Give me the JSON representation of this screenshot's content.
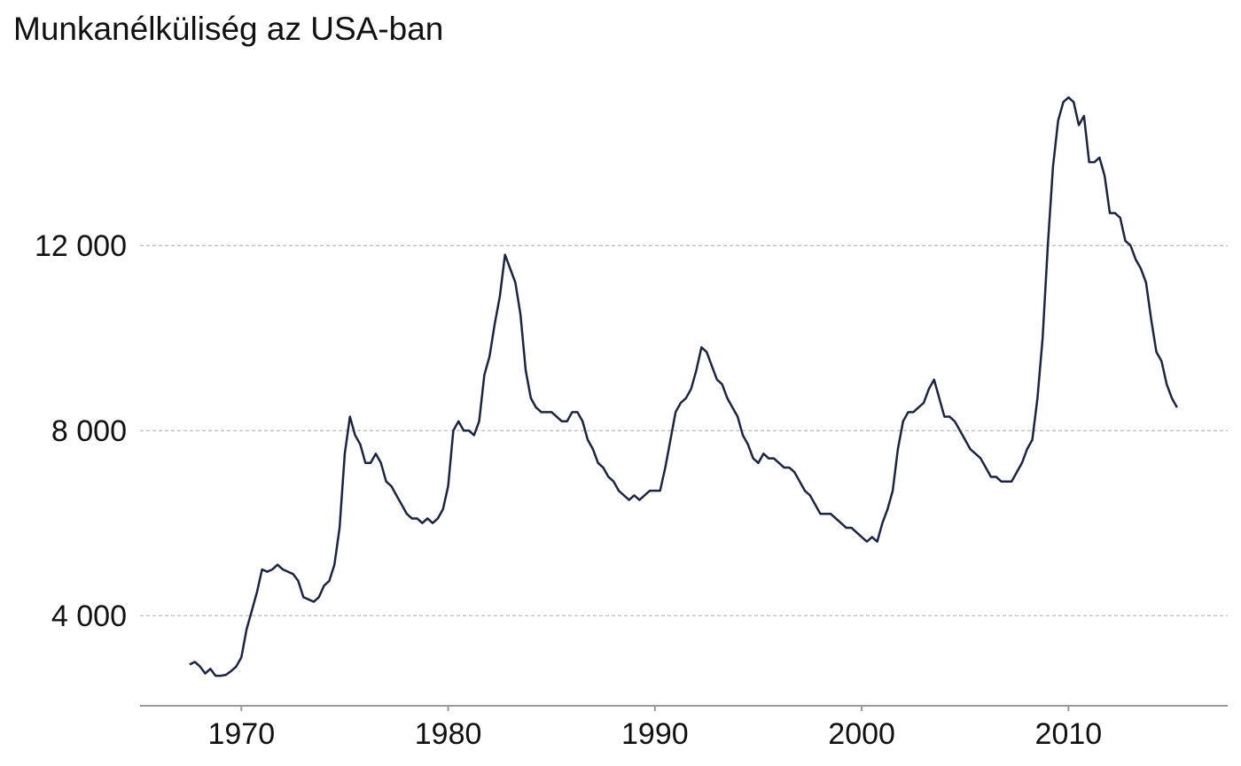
{
  "chart_data": {
    "type": "line",
    "title": "Munkanélküliség az USA-ban",
    "color": "#1b2440",
    "grid": true,
    "xlim": [
      1965.1,
      2017.7
    ],
    "xticks": [
      1970,
      1980,
      1990,
      2000,
      2010
    ],
    "ylim": [
      2052,
      15985
    ],
    "yticks": [
      {
        "value": 4000,
        "label": "4 000"
      },
      {
        "value": 8000,
        "label": "8 000"
      },
      {
        "value": 12000,
        "label": "12 000"
      }
    ],
    "x": [
      1967.5,
      1967.75,
      1968,
      1968.25,
      1968.5,
      1968.75,
      1969,
      1969.25,
      1969.5,
      1969.75,
      1970,
      1970.25,
      1970.5,
      1970.75,
      1971,
      1971.25,
      1971.5,
      1971.75,
      1972,
      1972.25,
      1972.5,
      1972.75,
      1973,
      1973.25,
      1973.5,
      1973.75,
      1974,
      1974.25,
      1974.5,
      1974.75,
      1975,
      1975.25,
      1975.5,
      1975.75,
      1976,
      1976.25,
      1976.5,
      1976.75,
      1977,
      1977.25,
      1977.5,
      1977.75,
      1978,
      1978.25,
      1978.5,
      1978.75,
      1979,
      1979.25,
      1979.5,
      1979.75,
      1980,
      1980.25,
      1980.5,
      1980.75,
      1981,
      1981.25,
      1981.5,
      1981.75,
      1982,
      1982.25,
      1982.5,
      1982.75,
      1983,
      1983.25,
      1983.5,
      1983.75,
      1984,
      1984.25,
      1984.5,
      1984.75,
      1985,
      1985.25,
      1985.5,
      1985.75,
      1986,
      1986.25,
      1986.5,
      1986.75,
      1987,
      1987.25,
      1987.5,
      1987.75,
      1988,
      1988.25,
      1988.5,
      1988.75,
      1989,
      1989.25,
      1989.5,
      1989.75,
      1990,
      1990.25,
      1990.5,
      1990.75,
      1991,
      1991.25,
      1991.5,
      1991.75,
      1992,
      1992.25,
      1992.5,
      1992.75,
      1993,
      1993.25,
      1993.5,
      1993.75,
      1994,
      1994.25,
      1994.5,
      1994.75,
      1995,
      1995.25,
      1995.5,
      1995.75,
      1996,
      1996.25,
      1996.5,
      1996.75,
      1997,
      1997.25,
      1997.5,
      1997.75,
      1998,
      1998.25,
      1998.5,
      1998.75,
      1999,
      1999.25,
      1999.5,
      1999.75,
      2000,
      2000.25,
      2000.5,
      2000.75,
      2001,
      2001.25,
      2001.5,
      2001.75,
      2002,
      2002.25,
      2002.5,
      2002.75,
      2003,
      2003.25,
      2003.5,
      2003.75,
      2004,
      2004.25,
      2004.5,
      2004.75,
      2005,
      2005.25,
      2005.5,
      2005.75,
      2006,
      2006.25,
      2006.5,
      2006.75,
      2007,
      2007.25,
      2007.5,
      2007.75,
      2008,
      2008.25,
      2008.5,
      2008.75,
      2009,
      2009.25,
      2009.5,
      2009.75,
      2010,
      2010.25,
      2010.5,
      2010.75,
      2011,
      2011.25,
      2011.5,
      2011.75,
      2012,
      2012.25,
      2012.5,
      2012.75,
      2013,
      2013.25,
      2013.5,
      2013.75,
      2014,
      2014.25,
      2014.5,
      2014.75,
      2015,
      2015.25
    ],
    "values": [
      2944,
      3000,
      2900,
      2750,
      2850,
      2700,
      2700,
      2720,
      2800,
      2900,
      3100,
      3700,
      4100,
      4500,
      5000,
      4950,
      5000,
      5100,
      5000,
      4950,
      4900,
      4750,
      4400,
      4350,
      4300,
      4400,
      4650,
      4750,
      5100,
      5900,
      7500,
      8300,
      7900,
      7700,
      7300,
      7300,
      7500,
      7300,
      6900,
      6800,
      6600,
      6400,
      6200,
      6100,
      6100,
      6000,
      6100,
      6000,
      6100,
      6300,
      6800,
      8000,
      8200,
      8000,
      8000,
      7900,
      8200,
      9200,
      9600,
      10300,
      10900,
      11800,
      11500,
      11200,
      10500,
      9300,
      8700,
      8500,
      8400,
      8400,
      8400,
      8300,
      8200,
      8200,
      8400,
      8400,
      8200,
      7800,
      7600,
      7300,
      7200,
      7000,
      6900,
      6700,
      6600,
      6500,
      6600,
      6500,
      6600,
      6700,
      6700,
      6700,
      7200,
      7800,
      8400,
      8600,
      8700,
      8900,
      9300,
      9800,
      9700,
      9400,
      9100,
      9000,
      8700,
      8500,
      8300,
      7900,
      7700,
      7400,
      7300,
      7500,
      7400,
      7400,
      7300,
      7200,
      7200,
      7100,
      6900,
      6700,
      6600,
      6400,
      6200,
      6200,
      6200,
      6100,
      6000,
      5900,
      5900,
      5800,
      5700,
      5600,
      5700,
      5600,
      6000,
      6300,
      6700,
      7600,
      8200,
      8400,
      8400,
      8500,
      8600,
      8900,
      9100,
      8700,
      8300,
      8300,
      8200,
      8000,
      7800,
      7600,
      7500,
      7400,
      7200,
      7000,
      7000,
      6900,
      6900,
      6900,
      7100,
      7300,
      7600,
      7800,
      8700,
      10000,
      12000,
      13700,
      14700,
      15100,
      15200,
      15100,
      14600,
      14800,
      13800,
      13800,
      13900,
      13500,
      12700,
      12700,
      12600,
      12100,
      12000,
      11700,
      11500,
      11200,
      10400,
      9700,
      9500,
      9000,
      8700,
      8500
    ]
  }
}
